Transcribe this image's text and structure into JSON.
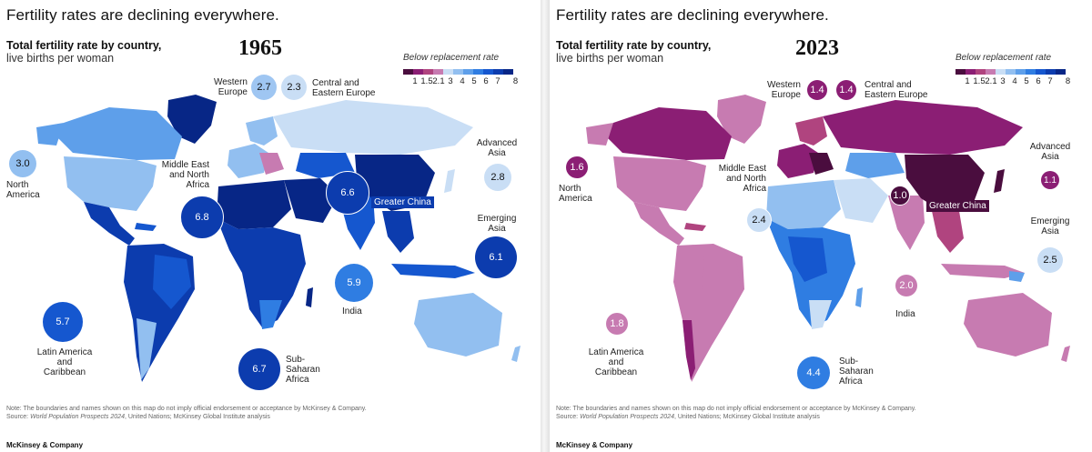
{
  "colors": {
    "below_replacement": [
      "#4a0d3e",
      "#8b1e74",
      "#b0447f",
      "#c77bb1"
    ],
    "above_replacement": [
      "#c9def5",
      "#92bff0",
      "#5e9fea",
      "#2f7de2",
      "#1557cf",
      "#0c3cae",
      "#072686"
    ],
    "bubble_text_dark": "#1a2a3a",
    "bubble_text_light": "#ffffff"
  },
  "legend": {
    "title": "Below replacement rate",
    "ticks": [
      "1",
      "1.5",
      "2.1",
      "3",
      "4",
      "5",
      "6",
      "7",
      "8"
    ]
  },
  "panels": [
    {
      "id": "left",
      "headline": "Fertility rates are declining everywhere.",
      "subtitle_bold": "Total fertility rate by country,",
      "subtitle_rest": "live births per woman",
      "year": "1965",
      "regions": [
        {
          "key": "western_europe",
          "name": "Western Europe",
          "value": "2.7"
        },
        {
          "key": "central_eastern_europe",
          "name": "Central and Eastern Europe",
          "value": "2.3"
        },
        {
          "key": "north_america",
          "name": "North America",
          "value": "3.0"
        },
        {
          "key": "mena",
          "name": "Middle East and North Africa",
          "value": "6.8"
        },
        {
          "key": "greater_china",
          "name": "Greater China",
          "value": "6.6"
        },
        {
          "key": "advanced_asia",
          "name": "Advanced Asia",
          "value": "2.8"
        },
        {
          "key": "emerging_asia",
          "name": "Emerging Asia",
          "value": "6.1"
        },
        {
          "key": "india",
          "name": "India",
          "value": "5.9"
        },
        {
          "key": "latam",
          "name": "Latin America and Caribbean",
          "value": "5.7"
        },
        {
          "key": "ssa",
          "name": "Sub-Saharan Africa",
          "value": "6.7"
        }
      ],
      "note_line1": "Note: The boundaries and names shown on this map do not imply official endorsement or acceptance by McKinsey & Company.",
      "note_source_label": "Source: ",
      "note_source_title": "World Population Prospects 2024",
      "note_source_rest": ", United Nations; McKinsey Global Institute analysis",
      "brand": "McKinsey & Company"
    },
    {
      "id": "right",
      "headline": "Fertility rates are declining everywhere.",
      "subtitle_bold": "Total fertility rate by country,",
      "subtitle_rest": "live births per woman",
      "year": "2023",
      "regions": [
        {
          "key": "western_europe",
          "name": "Western Europe",
          "value": "1.4"
        },
        {
          "key": "central_eastern_europe",
          "name": "Central and Eastern Europe",
          "value": "1.4"
        },
        {
          "key": "north_america",
          "name": "North America",
          "value": "1.6"
        },
        {
          "key": "mena",
          "name": "Middle East and North Africa",
          "value": "2.4"
        },
        {
          "key": "greater_china",
          "name": "Greater China",
          "value": "1.0"
        },
        {
          "key": "advanced_asia",
          "name": "Advanced Asia",
          "value": "1.1"
        },
        {
          "key": "emerging_asia",
          "name": "Emerging Asia",
          "value": "2.5"
        },
        {
          "key": "india",
          "name": "India",
          "value": "2.0"
        },
        {
          "key": "latam",
          "name": "Latin America and Caribbean",
          "value": "1.8"
        },
        {
          "key": "ssa",
          "name": "Sub-Saharan Africa",
          "value": "4.4"
        }
      ],
      "note_line1": "Note: The boundaries and names shown on this map do not imply official endorsement or acceptance by McKinsey & Company.",
      "note_source_label": "Source: ",
      "note_source_title": "World Population Prospects 2024",
      "note_source_rest": ", United Nations; McKinsey Global Institute analysis",
      "brand": "McKinsey & Company"
    }
  ]
}
